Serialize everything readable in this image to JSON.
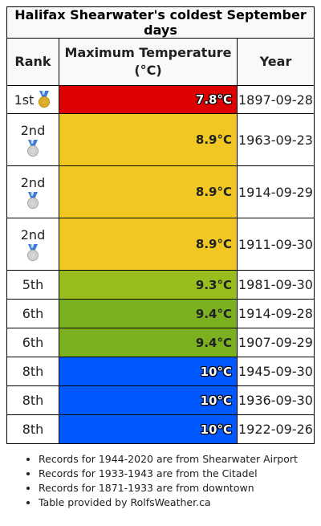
{
  "title": "Halifax Shearwater's coldest September days",
  "headers": {
    "rank": "Rank",
    "temp_line1": "Maximum Temperature",
    "temp_line2": "(°C)",
    "year": "Year"
  },
  "rows": [
    {
      "rank": "1st",
      "medal": "gold-medal-icon",
      "temp": "7.8°C",
      "date": "1897-09-28",
      "color": "#dd0000"
    },
    {
      "rank": "2nd",
      "medal": "silver-medal-icon",
      "temp": "8.9°C",
      "date": "1963-09-23",
      "color": "#f1c823"
    },
    {
      "rank": "2nd",
      "medal": "silver-medal-icon",
      "temp": "8.9°C",
      "date": "1914-09-29",
      "color": "#f1c823"
    },
    {
      "rank": "2nd",
      "medal": "silver-medal-icon",
      "temp": "8.9°C",
      "date": "1911-09-30",
      "color": "#f1c823"
    },
    {
      "rank": "5th",
      "medal": "",
      "temp": "9.3°C",
      "date": "1981-09-30",
      "color": "#97be1c"
    },
    {
      "rank": "6th",
      "medal": "",
      "temp": "9.4°C",
      "date": "1914-09-28",
      "color": "#7bb020"
    },
    {
      "rank": "6th",
      "medal": "",
      "temp": "9.4°C",
      "date": "1907-09-29",
      "color": "#7bb020"
    },
    {
      "rank": "8th",
      "medal": "",
      "temp": "10°C",
      "date": "1945-09-30",
      "color": "#0058ff"
    },
    {
      "rank": "8th",
      "medal": "",
      "temp": "10°C",
      "date": "1936-09-30",
      "color": "#0058ff"
    },
    {
      "rank": "8th",
      "medal": "",
      "temp": "10°C",
      "date": "1922-09-26",
      "color": "#0058ff"
    }
  ],
  "notes": [
    "Records for 1944-2020 are from Shearwater Airport",
    "Records for 1933-1943 are from the Citadel",
    "Records for 1871-1933 are from downtown",
    "Table provided by RolfsWeather.ca"
  ]
}
